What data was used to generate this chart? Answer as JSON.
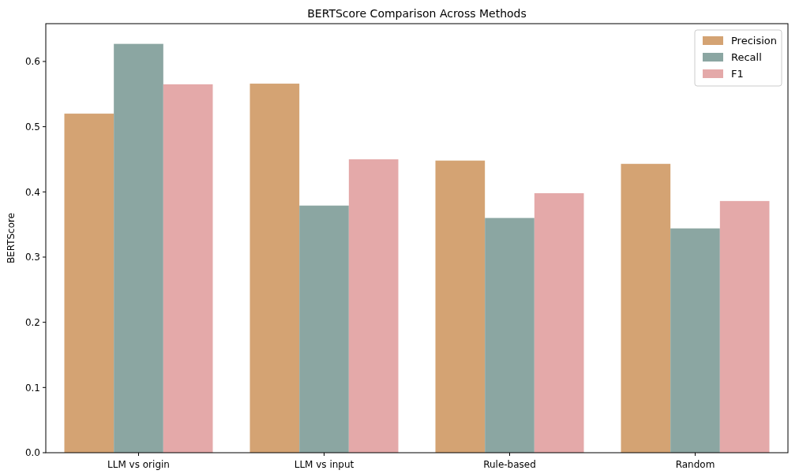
{
  "chart_data": {
    "type": "bar",
    "title": "BERTScore Comparison Across Methods",
    "ylabel": "BERTScore",
    "categories": [
      "LLM vs origin",
      "LLM vs input",
      "Rule-based",
      "Random"
    ],
    "series": [
      {
        "name": "Precision",
        "color": "#d4a373",
        "values": [
          0.52,
          0.566,
          0.448,
          0.443
        ]
      },
      {
        "name": "Recall",
        "color": "#8ba6a2",
        "values": [
          0.627,
          0.379,
          0.36,
          0.344
        ]
      },
      {
        "name": "F1",
        "color": "#e4a9a9",
        "values": [
          0.565,
          0.45,
          0.398,
          0.386
        ]
      }
    ],
    "ylim": [
      0,
      0.658
    ],
    "yticks": [
      {
        "value": 0,
        "label": "0.0"
      },
      {
        "value": 0.1,
        "label": "0.1"
      },
      {
        "value": 0.2,
        "label": "0.2"
      },
      {
        "value": 0.3,
        "label": "0.3"
      },
      {
        "value": 0.4,
        "label": "0.4"
      },
      {
        "value": 0.5,
        "label": "0.5"
      },
      {
        "value": 0.6,
        "label": "0.6"
      }
    ],
    "grid": false,
    "legend": "top right"
  }
}
